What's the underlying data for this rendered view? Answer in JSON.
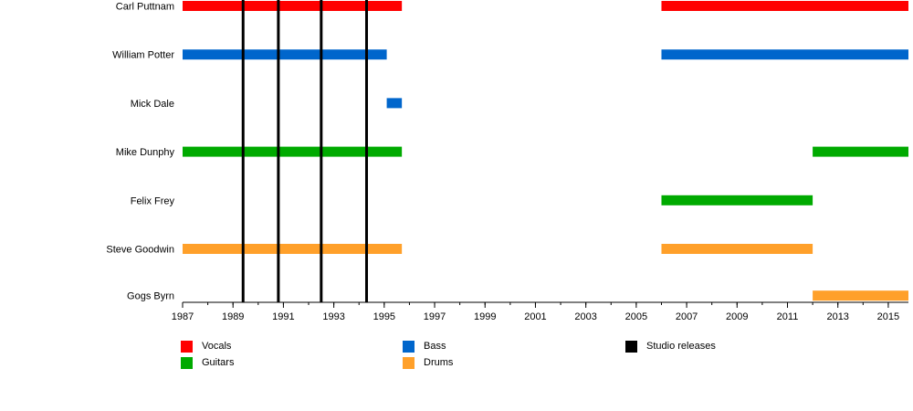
{
  "chart_data": {
    "type": "timeline",
    "xlim": [
      1987,
      2015.8
    ],
    "x_ticks": [
      "1987",
      "1989",
      "1991",
      "1993",
      "1995",
      "1997",
      "1999",
      "2001",
      "2003",
      "2005",
      "2007",
      "2009",
      "2011",
      "2013",
      "2015"
    ],
    "roles": [
      {
        "key": "vocals",
        "name": "Vocals",
        "color": "#ff0000"
      },
      {
        "key": "bass",
        "name": "Bass",
        "color": "#0066cc"
      },
      {
        "key": "guitars",
        "name": "Guitars",
        "color": "#00aa00"
      },
      {
        "key": "drums",
        "name": "Drums",
        "color": "#ffa02a"
      },
      {
        "key": "studio",
        "name": "Studio releases",
        "color": "#000000"
      }
    ],
    "members": [
      {
        "name": "Carl Puttnam",
        "periods": [
          {
            "role": "vocals",
            "start": 1987.0,
            "end": 1995.7
          },
          {
            "role": "vocals",
            "start": 2006.0,
            "end": 2015.8
          }
        ]
      },
      {
        "name": "William Potter",
        "periods": [
          {
            "role": "bass",
            "start": 1987.0,
            "end": 1995.1
          },
          {
            "role": "bass",
            "start": 2006.0,
            "end": 2015.8
          }
        ]
      },
      {
        "name": "Mick Dale",
        "periods": [
          {
            "role": "bass",
            "start": 1995.1,
            "end": 1995.7
          }
        ]
      },
      {
        "name": "Mike Dunphy",
        "periods": [
          {
            "role": "guitars",
            "start": 1987.0,
            "end": 1995.7
          },
          {
            "role": "guitars",
            "start": 2012.0,
            "end": 2015.8
          }
        ]
      },
      {
        "name": "Felix Frey",
        "periods": [
          {
            "role": "guitars",
            "start": 2006.0,
            "end": 2012.0
          }
        ]
      },
      {
        "name": "Steve Goodwin",
        "periods": [
          {
            "role": "drums",
            "start": 1987.0,
            "end": 1995.7
          },
          {
            "role": "drums",
            "start": 2006.0,
            "end": 2012.0
          }
        ]
      },
      {
        "name": "Gogs Byrn",
        "periods": [
          {
            "role": "drums",
            "start": 2012.0,
            "end": 2015.8
          }
        ]
      }
    ],
    "studio_releases": [
      1989.4,
      1990.8,
      1992.5,
      1994.3
    ]
  }
}
